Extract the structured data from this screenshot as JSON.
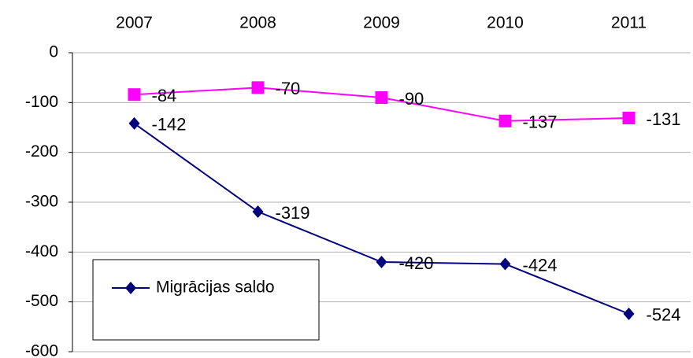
{
  "chart_data": {
    "type": "line",
    "categories": [
      "2007",
      "2008",
      "2009",
      "2010",
      "2011"
    ],
    "series": [
      {
        "color": "#ff00ff",
        "marker": "square",
        "values": [
          -84,
          -70,
          -90,
          -137,
          -131
        ]
      },
      {
        "name": "Migrācijas saldo",
        "color": "#000080",
        "marker": "diamond",
        "values": [
          -142,
          -319,
          -420,
          -424,
          -524
        ]
      }
    ],
    "ylim": [
      -600,
      0
    ],
    "yticks": [
      0,
      -100,
      -200,
      -300,
      -400,
      -500,
      -600
    ],
    "grid": true,
    "legend": "lower left"
  }
}
